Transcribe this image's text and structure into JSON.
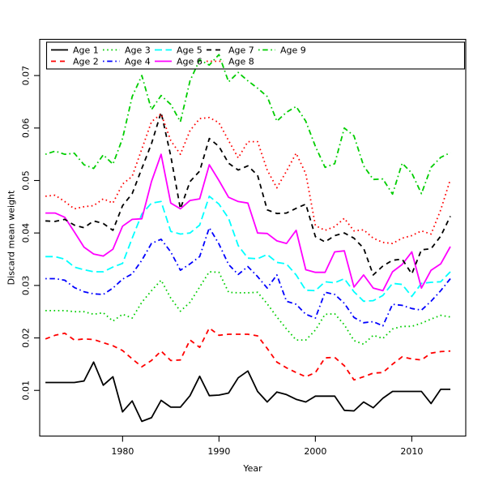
{
  "figure": {
    "background": "#FFFFFF",
    "border_color": "#000000"
  },
  "chart_data": {
    "type": "line",
    "title": "",
    "xlabel": "Year",
    "ylabel": "Discard mean weight",
    "x_tick_labels": [
      "1980",
      "1990",
      "2000",
      "2010"
    ],
    "x_tick_values": [
      1980,
      1990,
      2000,
      2010
    ],
    "y_tick_labels": [
      "0.01",
      "0.02",
      "0.03",
      "0.04",
      "0.05",
      "0.06",
      "0.07"
    ],
    "y_tick_values": [
      0.01,
      0.02,
      0.03,
      0.04,
      0.05,
      0.06,
      0.07
    ],
    "xlim": [
      1971.4,
      2015.6
    ],
    "ylim": [
      0.0013,
      0.0769
    ],
    "grid": false,
    "legend_position": "top",
    "legend_columns": 5,
    "years": [
      1972,
      1973,
      1974,
      1975,
      1976,
      1977,
      1978,
      1979,
      1980,
      1981,
      1982,
      1983,
      1984,
      1985,
      1986,
      1987,
      1988,
      1989,
      1990,
      1991,
      1992,
      1993,
      1994,
      1995,
      1996,
      1997,
      1998,
      1999,
      2000,
      2001,
      2002,
      2003,
      2004,
      2005,
      2006,
      2007,
      2008,
      2009,
      2010,
      2011,
      2012,
      2013,
      2014
    ],
    "series": [
      {
        "name": "Age 1",
        "color": "#000000",
        "linestyle": "solid",
        "values": [
          0.0115,
          0.0115,
          0.0115,
          0.0115,
          0.0118,
          0.0154,
          0.011,
          0.0126,
          0.0059,
          0.008,
          0.0041,
          0.0048,
          0.0081,
          0.0068,
          0.0068,
          0.009,
          0.0127,
          0.009,
          0.0091,
          0.0095,
          0.0124,
          0.0137,
          0.0098,
          0.0078,
          0.0097,
          0.0092,
          0.0083,
          0.0078,
          0.0089,
          0.0089,
          0.0089,
          0.0062,
          0.0061,
          0.0078,
          0.0067,
          0.0085,
          0.0098,
          0.0098,
          0.0098,
          0.0098,
          0.0075,
          0.0102,
          0.0102
        ]
      },
      {
        "name": "Age 2",
        "color": "#FF0000",
        "linestyle": "dashed",
        "values": [
          0.0198,
          0.0205,
          0.0209,
          0.0196,
          0.0198,
          0.0197,
          0.0191,
          0.0185,
          0.0176,
          0.016,
          0.0145,
          0.0157,
          0.0175,
          0.0157,
          0.0158,
          0.0196,
          0.0182,
          0.0219,
          0.0205,
          0.0207,
          0.0207,
          0.0207,
          0.0204,
          0.018,
          0.0154,
          0.0143,
          0.0134,
          0.0126,
          0.0134,
          0.0162,
          0.0163,
          0.0147,
          0.012,
          0.0126,
          0.0133,
          0.0134,
          0.015,
          0.0164,
          0.016,
          0.0158,
          0.0171,
          0.0174,
          0.0175
        ]
      },
      {
        "name": "Age 3",
        "color": "#00CD00",
        "linestyle": "dotted",
        "values": [
          0.0252,
          0.0252,
          0.0252,
          0.025,
          0.025,
          0.0245,
          0.0248,
          0.0232,
          0.0245,
          0.0238,
          0.0268,
          0.029,
          0.031,
          0.0276,
          0.0251,
          0.0268,
          0.0297,
          0.0326,
          0.0325,
          0.0287,
          0.0286,
          0.0286,
          0.0287,
          0.0265,
          0.024,
          0.0217,
          0.0196,
          0.0196,
          0.0215,
          0.0245,
          0.0246,
          0.0225,
          0.0195,
          0.0188,
          0.0205,
          0.0199,
          0.0217,
          0.0222,
          0.0222,
          0.0228,
          0.0236,
          0.0243,
          0.024
        ]
      },
      {
        "name": "Age 4",
        "color": "#0000FF",
        "linestyle": "dotdash",
        "values": [
          0.0313,
          0.0313,
          0.031,
          0.0296,
          0.0288,
          0.0284,
          0.0283,
          0.0295,
          0.0312,
          0.0322,
          0.0348,
          0.038,
          0.0388,
          0.0364,
          0.0329,
          0.0341,
          0.0355,
          0.041,
          0.0379,
          0.034,
          0.0321,
          0.0336,
          0.0317,
          0.0295,
          0.032,
          0.027,
          0.0264,
          0.0245,
          0.0238,
          0.0287,
          0.0283,
          0.0266,
          0.0239,
          0.0229,
          0.0231,
          0.0223,
          0.0264,
          0.0262,
          0.0256,
          0.0253,
          0.027,
          0.029,
          0.0313
        ]
      },
      {
        "name": "Age 5",
        "color": "#00FFFF",
        "linestyle": "longdash",
        "values": [
          0.0355,
          0.0355,
          0.035,
          0.0335,
          0.033,
          0.0326,
          0.0326,
          0.0335,
          0.0342,
          0.039,
          0.0436,
          0.0457,
          0.046,
          0.0403,
          0.0398,
          0.04,
          0.0415,
          0.047,
          0.0455,
          0.0428,
          0.0376,
          0.0352,
          0.0351,
          0.0359,
          0.0344,
          0.0341,
          0.032,
          0.0291,
          0.029,
          0.0307,
          0.0305,
          0.0313,
          0.0288,
          0.027,
          0.0271,
          0.0281,
          0.0304,
          0.0302,
          0.0279,
          0.0304,
          0.0306,
          0.0307,
          0.0326
        ]
      },
      {
        "name": "Age 6",
        "color": "#FF00FF",
        "linestyle": "solid",
        "values": [
          0.0438,
          0.0438,
          0.043,
          0.0402,
          0.0373,
          0.036,
          0.0356,
          0.0369,
          0.0413,
          0.0426,
          0.0427,
          0.0498,
          0.055,
          0.0457,
          0.0446,
          0.0462,
          0.0465,
          0.053,
          0.05,
          0.0468,
          0.046,
          0.0457,
          0.04,
          0.0399,
          0.0385,
          0.038,
          0.0405,
          0.033,
          0.0325,
          0.0325,
          0.0364,
          0.0366,
          0.0297,
          0.032,
          0.0295,
          0.029,
          0.0326,
          0.034,
          0.0364,
          0.0295,
          0.0329,
          0.0341,
          0.0374
        ]
      },
      {
        "name": "Age 7",
        "color": "#000000",
        "linestyle": "dashed",
        "values": [
          0.0423,
          0.0422,
          0.0426,
          0.0415,
          0.041,
          0.0423,
          0.0418,
          0.0405,
          0.0452,
          0.0475,
          0.0523,
          0.057,
          0.063,
          0.0547,
          0.0446,
          0.0498,
          0.0518,
          0.058,
          0.0565,
          0.0533,
          0.052,
          0.0528,
          0.051,
          0.0444,
          0.0437,
          0.0438,
          0.0447,
          0.0455,
          0.0393,
          0.0383,
          0.0395,
          0.04,
          0.039,
          0.0371,
          0.032,
          0.0337,
          0.0348,
          0.035,
          0.0322,
          0.0368,
          0.037,
          0.0394,
          0.0432
        ]
      },
      {
        "name": "Age 8",
        "color": "#FF0000",
        "linestyle": "dotted",
        "values": [
          0.047,
          0.0472,
          0.046,
          0.0446,
          0.045,
          0.0452,
          0.0465,
          0.0457,
          0.0493,
          0.0508,
          0.056,
          0.0612,
          0.0627,
          0.0576,
          0.055,
          0.0595,
          0.0618,
          0.062,
          0.061,
          0.0576,
          0.0543,
          0.0574,
          0.0574,
          0.052,
          0.0486,
          0.0518,
          0.0552,
          0.0513,
          0.0414,
          0.0405,
          0.0412,
          0.0428,
          0.0404,
          0.0406,
          0.039,
          0.0382,
          0.038,
          0.039,
          0.0395,
          0.0404,
          0.0398,
          0.0444,
          0.0502
        ]
      },
      {
        "name": "Age 9",
        "color": "#00CD00",
        "linestyle": "dotdash",
        "values": [
          0.055,
          0.0556,
          0.055,
          0.0552,
          0.053,
          0.0523,
          0.0549,
          0.0531,
          0.058,
          0.066,
          0.07,
          0.0635,
          0.0662,
          0.0645,
          0.0612,
          0.069,
          0.073,
          0.072,
          0.074,
          0.0688,
          0.0706,
          0.069,
          0.0676,
          0.066,
          0.0613,
          0.063,
          0.0641,
          0.0613,
          0.0565,
          0.0525,
          0.0532,
          0.06,
          0.0585,
          0.0528,
          0.0502,
          0.0503,
          0.0474,
          0.0533,
          0.0514,
          0.0475,
          0.0525,
          0.0544,
          0.0553
        ]
      }
    ]
  }
}
